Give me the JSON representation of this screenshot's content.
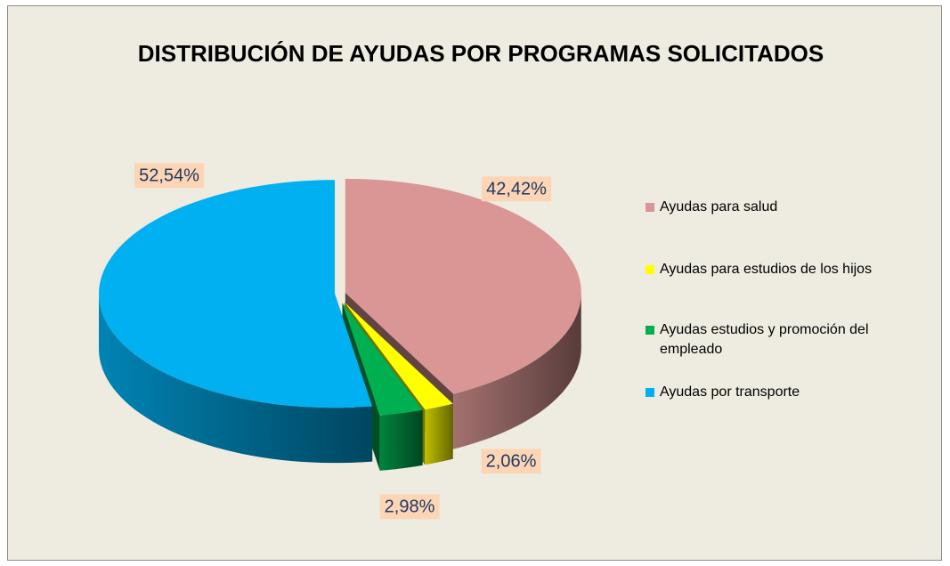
{
  "chart_data": {
    "type": "pie",
    "title": "DISTRIBUCIÓN DE AYUDAS POR PROGRAMAS SOLICITADOS",
    "categories": [
      "Ayudas para salud",
      "Ayudas para estudios de los hijos",
      "Ayudas estudios y promoción del empleado",
      "Ayudas por transporte"
    ],
    "values": [
      42.42,
      2.06,
      2.98,
      52.54
    ],
    "value_labels": [
      "42,42%",
      "2,06%",
      "2,98%",
      "52,54%"
    ],
    "colors": [
      "#d99694",
      "#ffff00",
      "#00b050",
      "#00b0f0"
    ],
    "legend": "right"
  }
}
